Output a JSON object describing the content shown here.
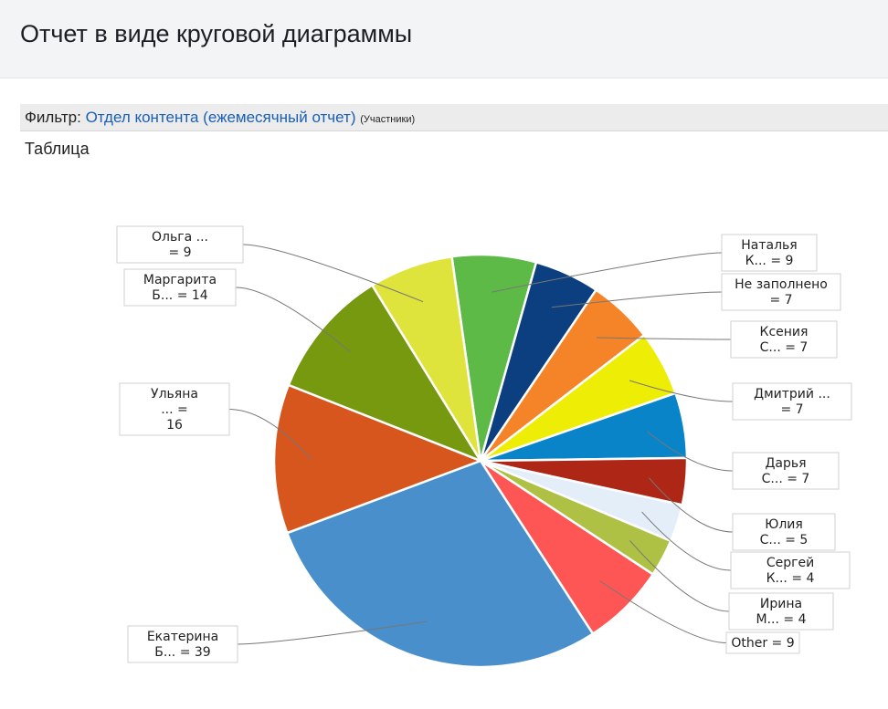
{
  "header": {
    "title": "Отчет в виде круговой диаграммы"
  },
  "filter": {
    "label": "Фильтр:",
    "link_text": "Отдел контента (ежемесячный отчет)",
    "note": "(Участники)"
  },
  "view": {
    "label": "Таблица"
  },
  "chart_data": {
    "type": "pie",
    "slices": [
      {
        "label": [
          "Наталья",
          "К... = 9"
        ],
        "value": 9,
        "color": "#5dba47"
      },
      {
        "label": [
          "Не заполнено",
          "= 7"
        ],
        "value": 7,
        "color": "#0b3f7f"
      },
      {
        "label": [
          "Ксения",
          "С... = 7"
        ],
        "value": 7,
        "color": "#f48427"
      },
      {
        "label": [
          "Дмитрий ...",
          "= 7"
        ],
        "value": 7,
        "color": "#eded05"
      },
      {
        "label": [
          "Дарья",
          "С... = 7"
        ],
        "value": 7,
        "color": "#0a84c8"
      },
      {
        "label": [
          "Юлия",
          "С... = 5"
        ],
        "value": 5,
        "color": "#ae2716"
      },
      {
        "label": [
          "Сергей",
          "К... = 4"
        ],
        "value": 4,
        "color": "#e3eef9"
      },
      {
        "label": [
          "Ирина",
          "М... = 4"
        ],
        "value": 4,
        "color": "#aec145"
      },
      {
        "label": [
          "Other = 9"
        ],
        "value": 9,
        "color": "#fe5655"
      },
      {
        "label": [
          "Екатерина",
          "Б... = 39"
        ],
        "value": 39,
        "color": "#488fcb"
      },
      {
        "label": [
          "Ульяна",
          "... =",
          "16"
        ],
        "value": 16,
        "color": "#d6561e"
      },
      {
        "label": [
          "Маргарита",
          "Б... = 14"
        ],
        "value": 14,
        "color": "#77990f"
      },
      {
        "label": [
          "Ольга ...",
          "= 9"
        ],
        "value": 9,
        "color": "#dfe43c"
      }
    ]
  }
}
